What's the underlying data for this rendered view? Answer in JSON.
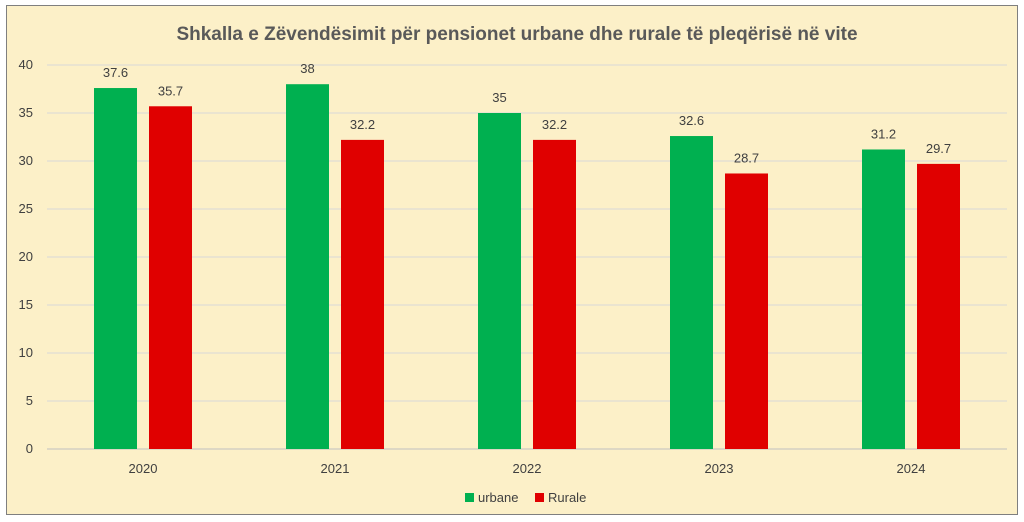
{
  "chart_data": {
    "type": "bar",
    "title": "Shkalla e Zëvendësimit për pensionet urbane dhe rurale të pleqërisë në vite",
    "categories": [
      "2020",
      "2021",
      "2022",
      "2023",
      "2024"
    ],
    "series": [
      {
        "name": "urbane",
        "values": [
          37.6,
          38,
          35,
          32.6,
          31.2
        ],
        "color": "#00b050"
      },
      {
        "name": "Rurale",
        "values": [
          35.7,
          32.2,
          32.2,
          28.7,
          29.7
        ],
        "color": "#e00000"
      }
    ],
    "ylim": [
      0,
      40
    ],
    "yticks": [
      "0",
      "5",
      "10",
      "15",
      "20",
      "25",
      "30",
      "35",
      "40"
    ],
    "grid": true,
    "legend_position": "bottom",
    "background": "#fcf0c8"
  }
}
